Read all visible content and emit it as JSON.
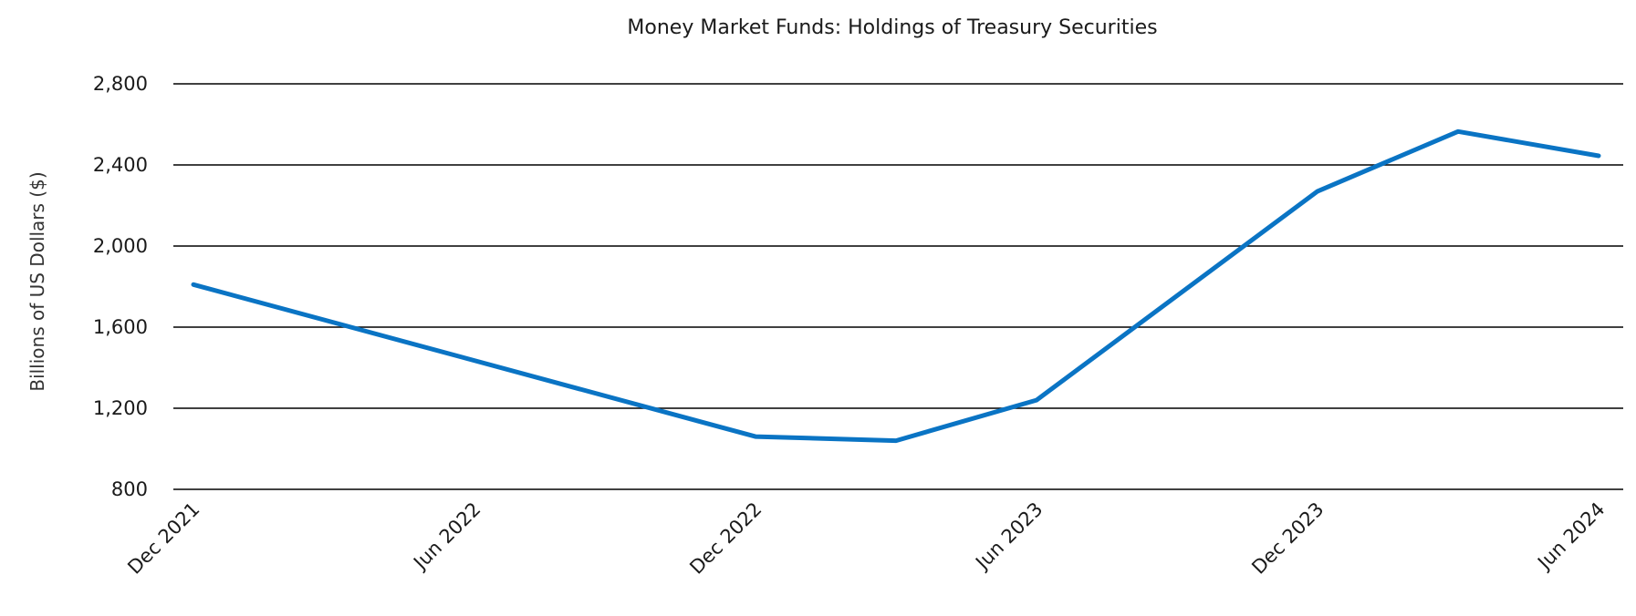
{
  "chart_data": {
    "type": "line",
    "title": "Money Market Funds: Holdings of Treasury Securities",
    "xlabel": "",
    "ylabel": "Billions  of US Dollars ($)",
    "ylim": [
      800,
      2800
    ],
    "yticks": [
      800,
      1200,
      1600,
      2000,
      2400,
      2800
    ],
    "ytick_labels": [
      "800",
      "1,200",
      "1,600",
      "2,000",
      "2,400",
      "2,800"
    ],
    "xticks": [
      "Dec 2021",
      "Jun 2022",
      "Dec 2022",
      "Jun 2023",
      "Dec 2023",
      "Jun 2024"
    ],
    "grid": "horizontal",
    "legend": "none",
    "series": [
      {
        "color": "#0a74c4",
        "points": [
          {
            "x": "Dec 2021",
            "y": 1810
          },
          {
            "x": "Dec 2022",
            "y": 1060
          },
          {
            "x": "Mar 2023",
            "y": 1040
          },
          {
            "x": "Jun 2023",
            "y": 1240
          },
          {
            "x": "Dec 2023",
            "y": 2270
          },
          {
            "x": "Mar 2024",
            "y": 2565
          },
          {
            "x": "Jun 2024",
            "y": 2445
          }
        ]
      }
    ]
  }
}
